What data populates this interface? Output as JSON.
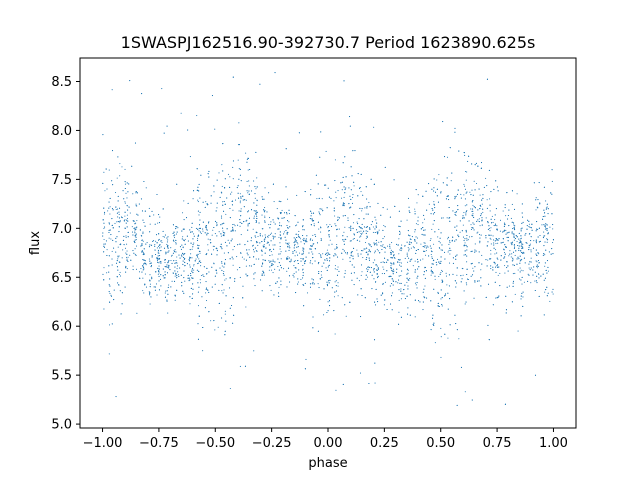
{
  "chart_data": {
    "type": "scatter",
    "title": "1SWASPJ162516.90-392730.7 Period 1623890.625s",
    "xlabel": "phase",
    "ylabel": "flux",
    "xlim": [
      -1.1,
      1.1
    ],
    "ylim": [
      4.96,
      8.74
    ],
    "xticks": [
      -1.0,
      -0.75,
      -0.5,
      -0.25,
      0.0,
      0.25,
      0.5,
      0.75,
      1.0
    ],
    "xtick_labels": [
      "−1.00",
      "−0.75",
      "−0.50",
      "−0.25",
      "0.00",
      "0.25",
      "0.50",
      "0.75",
      "1.00"
    ],
    "yticks": [
      5.0,
      5.5,
      6.0,
      6.5,
      7.0,
      7.5,
      8.0,
      8.5
    ],
    "ytick_labels": [
      "5.0",
      "5.5",
      "6.0",
      "6.5",
      "7.0",
      "7.5",
      "8.0",
      "8.5"
    ],
    "grid": false,
    "marker_color": "#1f77b4",
    "phase_range": [
      -1.0,
      1.0
    ],
    "light_curve_profile": {
      "phase": [
        0.0,
        0.05,
        0.1,
        0.15,
        0.2,
        0.25,
        0.3,
        0.35,
        0.4,
        0.45,
        0.5,
        0.55,
        0.6,
        0.65,
        0.7,
        0.75,
        0.8,
        0.85,
        0.9,
        0.95,
        1.0
      ],
      "flux": [
        6.8,
        6.9,
        7.0,
        6.95,
        6.75,
        6.7,
        6.65,
        6.7,
        6.75,
        6.8,
        6.85,
        6.9,
        7.0,
        7.05,
        7.0,
        6.8,
        6.85,
        6.8,
        6.75,
        6.85,
        6.8
      ],
      "scatter": [
        0.35,
        0.4,
        0.35,
        0.3,
        0.25,
        0.22,
        0.2,
        0.25,
        0.3,
        0.35,
        0.45,
        0.45,
        0.4,
        0.35,
        0.3,
        0.25,
        0.25,
        0.22,
        0.25,
        0.3,
        0.35
      ]
    },
    "outlier_range": [
      5.15,
      8.6
    ]
  }
}
